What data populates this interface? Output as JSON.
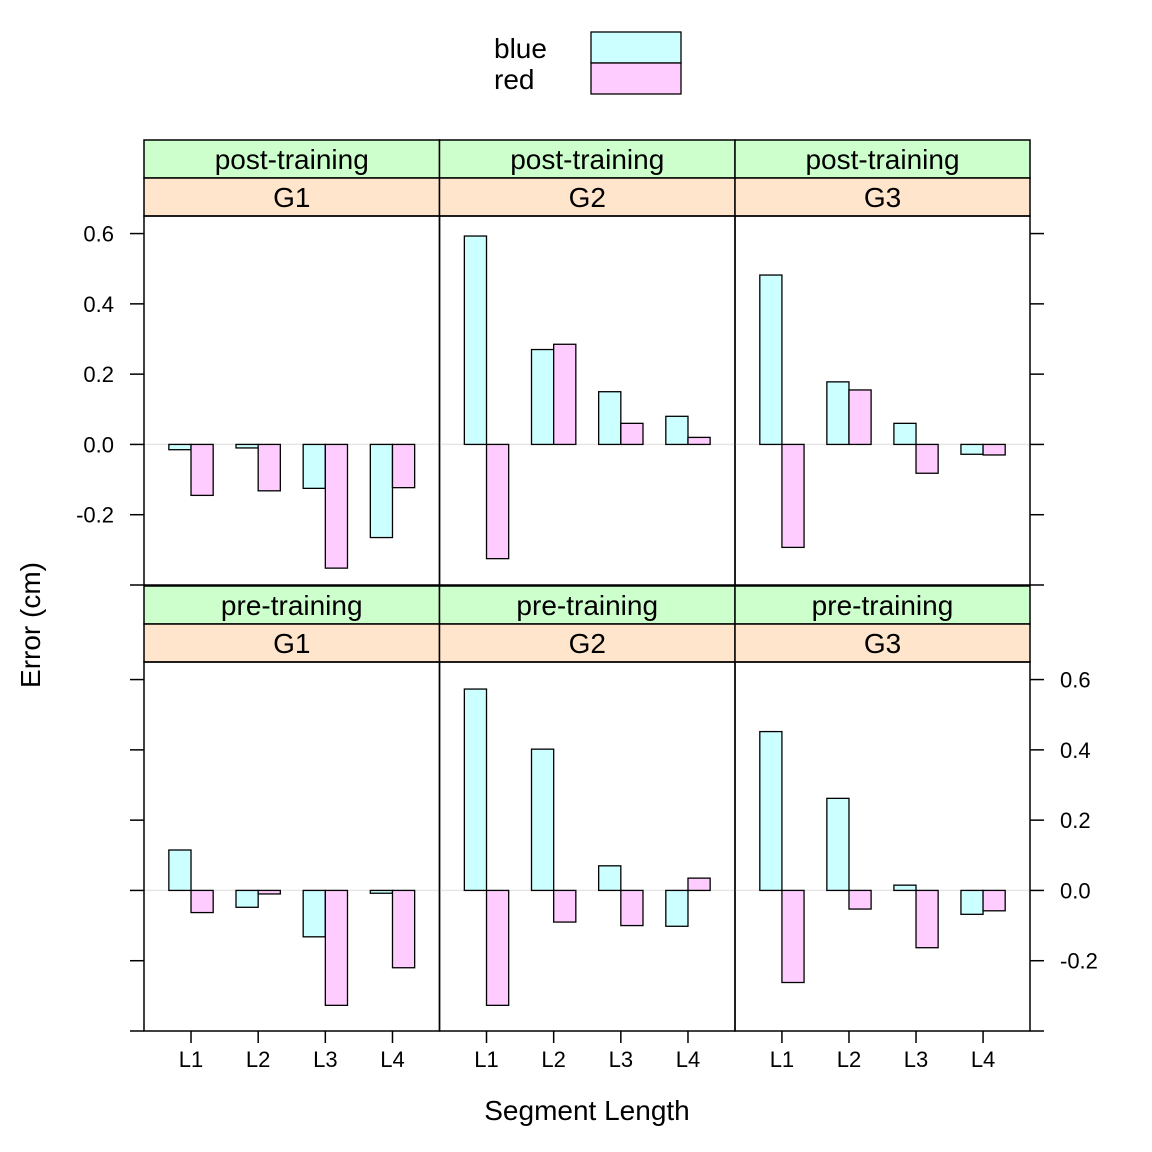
{
  "chart_data": {
    "type": "bar",
    "layout": "trellis 3 columns x 2 rows",
    "xlabel": "Segment Length",
    "ylabel": "Error (cm)",
    "categories": [
      "L1",
      "L2",
      "L3",
      "L4"
    ],
    "ylim": [
      -0.4,
      0.65
    ],
    "yticks": [
      -0.2,
      0.0,
      0.2,
      0.4,
      0.6
    ],
    "ytick_labels": [
      "-0.2",
      "0.0",
      "0.2",
      "0.4",
      "0.6"
    ],
    "legend": {
      "placement": "top",
      "items": [
        {
          "name": "blue",
          "color": "#ccffff"
        },
        {
          "name": "red",
          "color": "#ffccff"
        }
      ]
    },
    "strip_colors": {
      "outer": "#ccffcc",
      "inner": "#ffe5cc"
    },
    "panels": [
      {
        "condition": "post-training",
        "group": "G1",
        "series": [
          {
            "name": "blue",
            "values": [
              -0.015,
              -0.01,
              -0.125,
              -0.265
            ]
          },
          {
            "name": "red",
            "values": [
              -0.145,
              -0.132,
              -0.352,
              -0.123
            ]
          }
        ]
      },
      {
        "condition": "post-training",
        "group": "G2",
        "series": [
          {
            "name": "blue",
            "values": [
              0.593,
              0.27,
              0.15,
              0.08
            ]
          },
          {
            "name": "red",
            "values": [
              -0.325,
              0.285,
              0.06,
              0.02
            ]
          }
        ]
      },
      {
        "condition": "post-training",
        "group": "G3",
        "series": [
          {
            "name": "blue",
            "values": [
              0.482,
              0.178,
              0.06,
              -0.028
            ]
          },
          {
            "name": "red",
            "values": [
              -0.293,
              0.155,
              -0.082,
              -0.03
            ]
          }
        ]
      },
      {
        "condition": "pre-training",
        "group": "G1",
        "series": [
          {
            "name": "blue",
            "values": [
              0.115,
              -0.048,
              -0.132,
              -0.008
            ]
          },
          {
            "name": "red",
            "values": [
              -0.063,
              -0.01,
              -0.327,
              -0.22
            ]
          }
        ]
      },
      {
        "condition": "pre-training",
        "group": "G2",
        "series": [
          {
            "name": "blue",
            "values": [
              0.573,
              0.402,
              0.07,
              -0.102
            ]
          },
          {
            "name": "red",
            "values": [
              -0.327,
              -0.09,
              -0.1,
              0.035
            ]
          }
        ]
      },
      {
        "condition": "pre-training",
        "group": "G3",
        "series": [
          {
            "name": "blue",
            "values": [
              0.452,
              0.262,
              0.015,
              -0.068
            ]
          },
          {
            "name": "red",
            "values": [
              -0.262,
              -0.053,
              -0.163,
              -0.058
            ]
          }
        ]
      }
    ]
  }
}
